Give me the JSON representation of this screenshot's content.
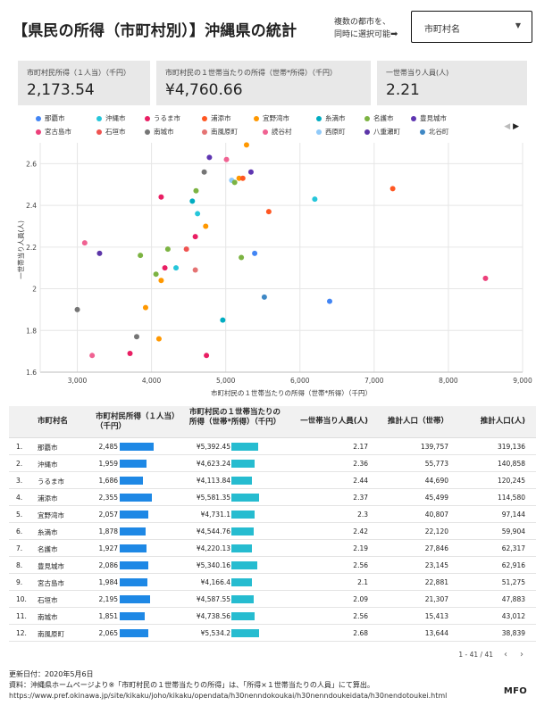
{
  "header": {
    "title": "【県民の所得（市町村別）】沖縄県の統計",
    "note_line1": "複数の都市を、",
    "note_line2": "同時に選択可能",
    "note_arrow": "➡",
    "dropdown_label": "市町村名",
    "dropdown_caret": "▼"
  },
  "cards": [
    {
      "label": "市町村民所得（１人当）（千円）",
      "value": "2,173.54"
    },
    {
      "label": "市町村民の１世帯当たりの所得（世帯*所得）（千円）",
      "value": "¥4,760.66"
    },
    {
      "label": "一世帯当り人員(人)",
      "value": "2.21"
    }
  ],
  "legend": {
    "items": [
      {
        "name": "那覇市",
        "color": "#4285f4"
      },
      {
        "name": "沖縄市",
        "color": "#26c6da"
      },
      {
        "name": "うるま市",
        "color": "#e91e63"
      },
      {
        "name": "浦添市",
        "color": "#ff5722"
      },
      {
        "name": "宜野湾市",
        "color": "#ff9800"
      },
      {
        "name": "糸満市",
        "color": "#00acc1"
      },
      {
        "name": "名護市",
        "color": "#7cb342"
      },
      {
        "name": "豊見城市",
        "color": "#5e35b1"
      },
      {
        "name": "宮古島市",
        "color": "#ec407a"
      },
      {
        "name": "石垣市",
        "color": "#ef5350"
      },
      {
        "name": "南城市",
        "color": "#757575"
      },
      {
        "name": "南風原町",
        "color": "#e57373"
      },
      {
        "name": "読谷村",
        "color": "#f06292"
      },
      {
        "name": "西原町",
        "color": "#90caf9"
      },
      {
        "name": "八重瀬町",
        "color": "#5c35a8"
      },
      {
        "name": "北谷町",
        "color": "#3f88c5"
      }
    ],
    "nav_prev": "◀",
    "nav_next": "▶"
  },
  "chart_data": {
    "type": "scatter",
    "xlabel": "市町村民の１世帯当たりの所得（世帯*所得）（千円）",
    "ylabel": "一世帯当り人員(人)",
    "xlim": [
      2500,
      9000
    ],
    "ylim": [
      1.6,
      2.7
    ],
    "xticks": [
      3000,
      4000,
      5000,
      6000,
      7000,
      8000,
      9000
    ],
    "xtick_labels": [
      "3,000",
      "4,000",
      "5,000",
      "6,000",
      "7,000",
      "8,000",
      "9,000"
    ],
    "yticks": [
      1.6,
      1.8,
      2.0,
      2.2,
      2.4,
      2.6
    ],
    "ytick_labels": [
      "1.6",
      "1.8",
      "2",
      "2.2",
      "2.4",
      "2.6"
    ],
    "grid": true,
    "points": [
      {
        "x": 5280,
        "y": 2.69,
        "color": "#ff9800"
      },
      {
        "x": 4780,
        "y": 2.63,
        "color": "#5e35b1"
      },
      {
        "x": 5010,
        "y": 2.62,
        "color": "#f06292"
      },
      {
        "x": 4710,
        "y": 2.56,
        "color": "#757575"
      },
      {
        "x": 5340,
        "y": 2.56,
        "color": "#5e35b1"
      },
      {
        "x": 5180,
        "y": 2.53,
        "color": "#ff9800"
      },
      {
        "x": 5230,
        "y": 2.53,
        "color": "#ff5722"
      },
      {
        "x": 5080,
        "y": 2.52,
        "color": "#90caf9"
      },
      {
        "x": 5120,
        "y": 2.51,
        "color": "#7cb342"
      },
      {
        "x": 7250,
        "y": 2.48,
        "color": "#ff5722"
      },
      {
        "x": 4600,
        "y": 2.47,
        "color": "#7cb342"
      },
      {
        "x": 4130,
        "y": 2.44,
        "color": "#e91e63"
      },
      {
        "x": 6200,
        "y": 2.43,
        "color": "#26c6da"
      },
      {
        "x": 4550,
        "y": 2.42,
        "color": "#00acc1"
      },
      {
        "x": 5580,
        "y": 2.37,
        "color": "#ff5722"
      },
      {
        "x": 4620,
        "y": 2.36,
        "color": "#26c6da"
      },
      {
        "x": 4730,
        "y": 2.3,
        "color": "#ff9800"
      },
      {
        "x": 4590,
        "y": 2.25,
        "color": "#e91e63"
      },
      {
        "x": 3100,
        "y": 2.22,
        "color": "#f06292"
      },
      {
        "x": 4220,
        "y": 2.19,
        "color": "#7cb342"
      },
      {
        "x": 4470,
        "y": 2.19,
        "color": "#ef5350"
      },
      {
        "x": 3300,
        "y": 2.17,
        "color": "#5c35a8"
      },
      {
        "x": 5390,
        "y": 2.17,
        "color": "#4285f4"
      },
      {
        "x": 3850,
        "y": 2.16,
        "color": "#7cb342"
      },
      {
        "x": 5210,
        "y": 2.15,
        "color": "#7cb342"
      },
      {
        "x": 4180,
        "y": 2.1,
        "color": "#e91e63"
      },
      {
        "x": 4330,
        "y": 2.1,
        "color": "#26c6da"
      },
      {
        "x": 4590,
        "y": 2.09,
        "color": "#e57373"
      },
      {
        "x": 4060,
        "y": 2.07,
        "color": "#7cb342"
      },
      {
        "x": 4130,
        "y": 2.04,
        "color": "#ff9800"
      },
      {
        "x": 8500,
        "y": 2.05,
        "color": "#ec407a"
      },
      {
        "x": 5520,
        "y": 1.96,
        "color": "#3f88c5"
      },
      {
        "x": 6400,
        "y": 1.94,
        "color": "#4285f4"
      },
      {
        "x": 3920,
        "y": 1.91,
        "color": "#ff9800"
      },
      {
        "x": 3000,
        "y": 1.9,
        "color": "#757575"
      },
      {
        "x": 4960,
        "y": 1.85,
        "color": "#00acc1"
      },
      {
        "x": 3800,
        "y": 1.77,
        "color": "#757575"
      },
      {
        "x": 4100,
        "y": 1.76,
        "color": "#ff9800"
      },
      {
        "x": 3710,
        "y": 1.69,
        "color": "#e91e63"
      },
      {
        "x": 3200,
        "y": 1.68,
        "color": "#f06292"
      },
      {
        "x": 4740,
        "y": 1.68,
        "color": "#e91e63"
      }
    ]
  },
  "table": {
    "headers": [
      "市町村名",
      "市町村民所得（１人当）（千円）",
      "市町村民の１世帯当たりの所得（世帯*所得）（千円）",
      "一世帯当り人員(人)",
      "推計人口（世帯）",
      "推計人口(人)"
    ],
    "rows": [
      {
        "n": "1.",
        "name": "那覇市",
        "income": "2,485",
        "income_v": 2485,
        "hh": "¥5,392.45",
        "hh_v": 5392.45,
        "members": "2.17",
        "households": "139,757",
        "pop": "319,136"
      },
      {
        "n": "2.",
        "name": "沖縄市",
        "income": "1,959",
        "income_v": 1959,
        "hh": "¥4,623.24",
        "hh_v": 4623.24,
        "members": "2.36",
        "households": "55,773",
        "pop": "140,858"
      },
      {
        "n": "3.",
        "name": "うるま市",
        "income": "1,686",
        "income_v": 1686,
        "hh": "¥4,113.84",
        "hh_v": 4113.84,
        "members": "2.44",
        "households": "44,690",
        "pop": "120,245"
      },
      {
        "n": "4.",
        "name": "浦添市",
        "income": "2,355",
        "income_v": 2355,
        "hh": "¥5,581.35",
        "hh_v": 5581.35,
        "members": "2.37",
        "households": "45,499",
        "pop": "114,580"
      },
      {
        "n": "5.",
        "name": "宜野湾市",
        "income": "2,057",
        "income_v": 2057,
        "hh": "¥4,731.1",
        "hh_v": 4731.1,
        "members": "2.3",
        "households": "40,807",
        "pop": "97,144"
      },
      {
        "n": "6.",
        "name": "糸満市",
        "income": "1,878",
        "income_v": 1878,
        "hh": "¥4,544.76",
        "hh_v": 4544.76,
        "members": "2.42",
        "households": "22,120",
        "pop": "59,904"
      },
      {
        "n": "7.",
        "name": "名護市",
        "income": "1,927",
        "income_v": 1927,
        "hh": "¥4,220.13",
        "hh_v": 4220.13,
        "members": "2.19",
        "households": "27,846",
        "pop": "62,317"
      },
      {
        "n": "8.",
        "name": "豊見城市",
        "income": "2,086",
        "income_v": 2086,
        "hh": "¥5,340.16",
        "hh_v": 5340.16,
        "members": "2.56",
        "households": "23,145",
        "pop": "62,916"
      },
      {
        "n": "9.",
        "name": "宮古島市",
        "income": "1,984",
        "income_v": 1984,
        "hh": "¥4,166.4",
        "hh_v": 4166.4,
        "members": "2.1",
        "households": "22,881",
        "pop": "51,275"
      },
      {
        "n": "10.",
        "name": "石垣市",
        "income": "2,195",
        "income_v": 2195,
        "hh": "¥4,587.55",
        "hh_v": 4587.55,
        "members": "2.09",
        "households": "21,307",
        "pop": "47,883"
      },
      {
        "n": "11.",
        "name": "南城市",
        "income": "1,851",
        "income_v": 1851,
        "hh": "¥4,738.56",
        "hh_v": 4738.56,
        "members": "2.56",
        "households": "15,413",
        "pop": "43,012"
      },
      {
        "n": "12.",
        "name": "南風原町",
        "income": "2,065",
        "income_v": 2065,
        "hh": "¥5,534.2",
        "hh_v": 5534.2,
        "members": "2.68",
        "households": "13,644",
        "pop": "38,839"
      }
    ],
    "bar_color_income": "#1e88e5",
    "bar_color_hh": "#26bcd0",
    "pagination": "1 - 41 / 41",
    "prev": "‹",
    "next": "›"
  },
  "footer": {
    "updated": "更新日付：2020年5月6日",
    "source": "資料：沖縄県ホームページより※「市町村民の１世帯当たりの所得」は、「所得×１世帯当たりの人員」にて算出。",
    "url": "https://www.pref.okinawa.jp/site/kikaku/joho/kikaku/opendata/h30nenndokoukai/h30nenndoukeidata/h30nendotoukei.html",
    "brand": "MFO"
  }
}
